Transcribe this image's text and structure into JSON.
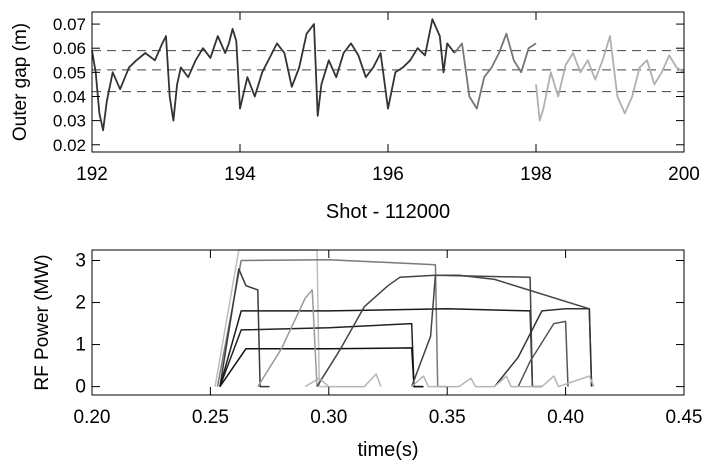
{
  "chart_data": [
    {
      "type": "line",
      "xlabel": "Shot - 112000",
      "ylabel": "Outer gap (m)",
      "xlim": [
        192,
        200
      ],
      "ylim": [
        0.017,
        0.075
      ],
      "x_ticks": [
        192,
        194,
        196,
        198,
        200
      ],
      "y_ticks": [
        0.02,
        0.03,
        0.04,
        0.05,
        0.06,
        0.07
      ],
      "x_tick_labels": [
        "192",
        "194",
        "196",
        "198",
        "200"
      ],
      "y_tick_labels": [
        "0.02",
        "0.03",
        "0.04",
        "0.05",
        "0.06",
        "0.07"
      ],
      "reference_lines": [
        0.059,
        0.051,
        0.042
      ],
      "grid": false,
      "series": [
        {
          "color": "#333333",
          "x": [
            192.0,
            192.05,
            192.1,
            192.15,
            192.2,
            192.28,
            192.38,
            192.5,
            192.6,
            192.72,
            192.85,
            192.95,
            193.0,
            193.05,
            193.1,
            193.15,
            193.2,
            193.3,
            193.4,
            193.5,
            193.6,
            193.7,
            193.8,
            193.85,
            193.9,
            193.95,
            194.0,
            194.1,
            194.2,
            194.3,
            194.4,
            194.5,
            194.6,
            194.7,
            194.8,
            194.9,
            195.0,
            195.05,
            195.1,
            195.2,
            195.3,
            195.4,
            195.5,
            195.6,
            195.7,
            195.8,
            195.9,
            196.0,
            196.1,
            196.2,
            196.3,
            196.4,
            196.5,
            196.6,
            196.7,
            196.75,
            196.8,
            196.9
          ],
          "y": [
            0.059,
            0.05,
            0.033,
            0.026,
            0.038,
            0.05,
            0.043,
            0.052,
            0.055,
            0.058,
            0.055,
            0.062,
            0.065,
            0.04,
            0.03,
            0.045,
            0.052,
            0.048,
            0.055,
            0.06,
            0.056,
            0.065,
            0.058,
            0.062,
            0.068,
            0.063,
            0.035,
            0.048,
            0.04,
            0.05,
            0.056,
            0.062,
            0.058,
            0.044,
            0.052,
            0.066,
            0.07,
            0.032,
            0.045,
            0.055,
            0.048,
            0.058,
            0.062,
            0.057,
            0.048,
            0.052,
            0.058,
            0.035,
            0.05,
            0.052,
            0.055,
            0.06,
            0.057,
            0.072,
            0.065,
            0.05,
            0.062,
            0.058
          ]
        },
        {
          "color": "#777777",
          "x": [
            196.9,
            197.0,
            197.1,
            197.2,
            197.3,
            197.4,
            197.5,
            197.6,
            197.7,
            197.8,
            197.9,
            198.0
          ],
          "y": [
            0.058,
            0.062,
            0.04,
            0.035,
            0.048,
            0.052,
            0.058,
            0.066,
            0.055,
            0.05,
            0.06,
            0.062
          ]
        },
        {
          "color": "#b0b0b0",
          "x": [
            198.0,
            198.05,
            198.1,
            198.2,
            198.3,
            198.4,
            198.5,
            198.6,
            198.7,
            198.8,
            198.9,
            199.0,
            199.1,
            199.2,
            199.3,
            199.4,
            199.5,
            199.6,
            199.7,
            199.8,
            199.9,
            200.0
          ],
          "y": [
            0.045,
            0.03,
            0.035,
            0.05,
            0.04,
            0.053,
            0.058,
            0.05,
            0.055,
            0.047,
            0.055,
            0.065,
            0.04,
            0.033,
            0.04,
            0.052,
            0.055,
            0.045,
            0.05,
            0.057,
            0.052,
            0.05
          ]
        }
      ]
    },
    {
      "type": "line",
      "xlabel": "time(s)",
      "ylabel": "RF Power (MW)",
      "xlim": [
        0.2,
        0.45
      ],
      "ylim": [
        -0.2,
        3.25
      ],
      "x_ticks": [
        0.2,
        0.25,
        0.3,
        0.35,
        0.4,
        0.45
      ],
      "y_ticks": [
        0,
        1,
        2,
        3
      ],
      "x_tick_labels": [
        "0.20",
        "0.25",
        "0.30",
        "0.35",
        "0.40",
        "0.45"
      ],
      "y_tick_labels": [
        "0",
        "1",
        "2",
        "3"
      ],
      "grid": false,
      "series": [
        {
          "color": "#bdbdbd",
          "x": [
            0.252,
            0.262,
            0.28,
            0.295,
            0.296,
            0.3
          ],
          "y": [
            0,
            3.25,
            3.25,
            3.25,
            0,
            0
          ]
        },
        {
          "color": "#7a7a7a",
          "x": [
            0.253,
            0.263,
            0.3,
            0.345,
            0.346,
            0.35
          ],
          "y": [
            0,
            3.0,
            3.02,
            2.9,
            0,
            0
          ]
        },
        {
          "color": "#3a3a3a",
          "x": [
            0.254,
            0.262,
            0.265,
            0.27,
            0.271,
            0.275
          ],
          "y": [
            0,
            2.8,
            2.4,
            2.3,
            0,
            0
          ]
        },
        {
          "color": "#1a1a1a",
          "x": [
            0.254,
            0.263,
            0.3,
            0.35,
            0.385,
            0.386,
            0.39
          ],
          "y": [
            0,
            1.8,
            1.8,
            1.85,
            1.8,
            0,
            0
          ]
        },
        {
          "color": "#222222",
          "x": [
            0.254,
            0.263,
            0.3,
            0.335,
            0.336,
            0.34
          ],
          "y": [
            0,
            1.35,
            1.4,
            1.5,
            0,
            0
          ]
        },
        {
          "color": "#111111",
          "x": [
            0.254,
            0.265,
            0.3,
            0.335,
            0.336,
            0.34
          ],
          "y": [
            0,
            0.9,
            0.9,
            0.92,
            0,
            0
          ]
        },
        {
          "color": "#9a9a9a",
          "x": [
            0.27,
            0.28,
            0.29,
            0.293,
            0.295
          ],
          "y": [
            0,
            0.9,
            2.1,
            2.3,
            0
          ]
        },
        {
          "color": "#444444",
          "x": [
            0.295,
            0.305,
            0.315,
            0.325,
            0.33,
            0.345,
            0.385,
            0.386,
            0.39
          ],
          "y": [
            0,
            0.9,
            1.9,
            2.4,
            2.6,
            2.65,
            2.6,
            0,
            0
          ]
        },
        {
          "color": "#444444",
          "x": [
            0.335,
            0.343,
            0.345,
            0.355,
            0.37,
            0.41,
            0.411
          ],
          "y": [
            0,
            1.2,
            2.65,
            2.65,
            2.55,
            1.85,
            0
          ]
        },
        {
          "color": "#333333",
          "x": [
            0.37,
            0.38,
            0.39,
            0.4,
            0.41,
            0.411
          ],
          "y": [
            0,
            0.7,
            1.8,
            1.85,
            1.85,
            0
          ]
        },
        {
          "color": "#555555",
          "x": [
            0.38,
            0.385,
            0.395,
            0.4,
            0.401
          ],
          "y": [
            0,
            0.6,
            1.5,
            1.55,
            0
          ]
        },
        {
          "color": "#b5b5b5",
          "x": [
            0.335,
            0.34,
            0.342,
            0.355,
            0.36,
            0.362,
            0.37,
            0.375,
            0.377,
            0.39,
            0.395,
            0.397,
            0.41,
            0.412
          ],
          "y": [
            0,
            0.25,
            0,
            0,
            0.2,
            0,
            0,
            0.25,
            0,
            0,
            0.25,
            0,
            0.25,
            0
          ]
        },
        {
          "color": "#b5b5b5",
          "x": [
            0.29,
            0.296,
            0.3,
            0.315,
            0.32,
            0.322
          ],
          "y": [
            0,
            0.2,
            0,
            0,
            0.3,
            0
          ]
        }
      ]
    }
  ]
}
